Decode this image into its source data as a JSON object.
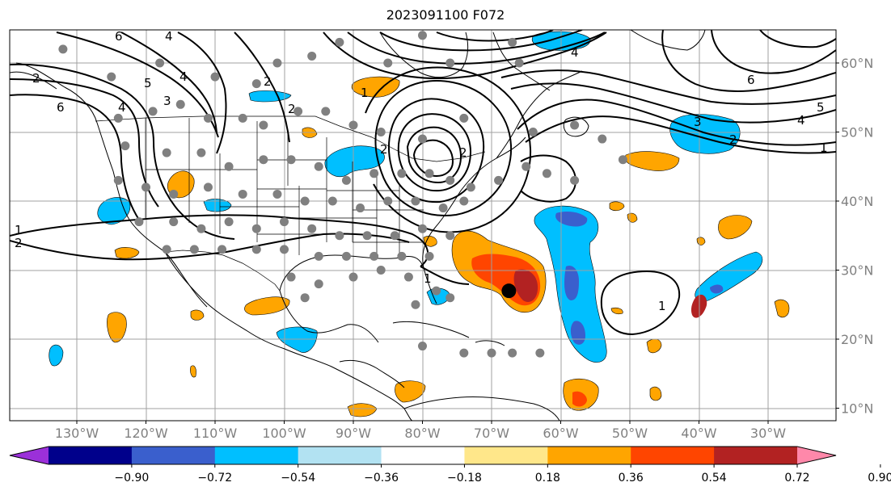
{
  "title": "2023091100 F072",
  "lon_labels": [
    {
      "label": "130°W",
      "lon": -130
    },
    {
      "label": "120°W",
      "lon": -120
    },
    {
      "label": "110°W",
      "lon": -110
    },
    {
      "label": "100°W",
      "lon": -100
    },
    {
      "label": "90°W",
      "lon": -90
    },
    {
      "label": "80°W",
      "lon": -80
    },
    {
      "label": "70°W",
      "lon": -70
    },
    {
      "label": "60°W",
      "lon": -60
    },
    {
      "label": "50°W",
      "lon": -50
    },
    {
      "label": "40°W",
      "lon": -40
    },
    {
      "label": "30°W",
      "lon": -30
    }
  ],
  "lat_labels": [
    {
      "label": "60°N",
      "lat": 60
    },
    {
      "label": "50°N",
      "lat": 50
    },
    {
      "label": "40°N",
      "lat": 40
    },
    {
      "label": "30°N",
      "lat": 30
    },
    {
      "label": "20°N",
      "lat": 20
    },
    {
      "label": "10°N",
      "lat": 10
    }
  ],
  "colorbar": {
    "colors": [
      "#9b30d9",
      "#00008b",
      "#3a5fcd",
      "#00bfff",
      "#b2e2f2",
      "#ffffff",
      "#ffe78a",
      "#ffa500",
      "#ff4500",
      "#b22222",
      "#ff88aa"
    ],
    "tick_labels": [
      "−0.90",
      "−0.72",
      "−0.54",
      "−0.36",
      "−0.18",
      "0.18",
      "0.36",
      "0.54",
      "0.72",
      "0.90"
    ]
  },
  "contour_labels": [
    "6",
    "4",
    "2",
    "6",
    "2",
    "4",
    "5",
    "4",
    "3",
    "1",
    "2",
    "2",
    "2",
    "4",
    "6",
    "5",
    "4",
    "3",
    "2",
    "1",
    "1",
    "1",
    "1",
    "2"
  ],
  "stations": [
    [
      -132,
      62
    ],
    [
      -125,
      58
    ],
    [
      -118,
      60
    ],
    [
      -110,
      58
    ],
    [
      -104,
      57
    ],
    [
      -101,
      60
    ],
    [
      -96,
      61
    ],
    [
      -92,
      63
    ],
    [
      -85,
      60
    ],
    [
      -80,
      64
    ],
    [
      -76,
      60
    ],
    [
      -67,
      63
    ],
    [
      -66,
      60
    ],
    [
      -124,
      52
    ],
    [
      -119,
      53
    ],
    [
      -115,
      54
    ],
    [
      -111,
      52
    ],
    [
      -106,
      52
    ],
    [
      -103,
      51
    ],
    [
      -98,
      53
    ],
    [
      -94,
      53
    ],
    [
      -90,
      51
    ],
    [
      -86,
      50
    ],
    [
      -80,
      49
    ],
    [
      -74,
      52
    ],
    [
      -64,
      50
    ],
    [
      -58,
      51
    ],
    [
      -54,
      49
    ],
    [
      -51,
      46
    ],
    [
      -123,
      48
    ],
    [
      -117,
      47
    ],
    [
      -112,
      47
    ],
    [
      -108,
      45
    ],
    [
      -103,
      46
    ],
    [
      -99,
      46
    ],
    [
      -95,
      45
    ],
    [
      -91,
      43
    ],
    [
      -87,
      44
    ],
    [
      -83,
      44
    ],
    [
      -79,
      44
    ],
    [
      -76,
      43
    ],
    [
      -73,
      42
    ],
    [
      -69,
      43
    ],
    [
      -65,
      45
    ],
    [
      -62,
      44
    ],
    [
      -58,
      43
    ],
    [
      -124,
      43
    ],
    [
      -120,
      42
    ],
    [
      -116,
      41
    ],
    [
      -111,
      42
    ],
    [
      -106,
      41
    ],
    [
      -101,
      41
    ],
    [
      -97,
      40
    ],
    [
      -93,
      40
    ],
    [
      -89,
      39
    ],
    [
      -85,
      40
    ],
    [
      -81,
      40
    ],
    [
      -77,
      39
    ],
    [
      -74,
      40
    ],
    [
      -121,
      37
    ],
    [
      -116,
      37
    ],
    [
      -112,
      36
    ],
    [
      -108,
      37
    ],
    [
      -104,
      36
    ],
    [
      -100,
      37
    ],
    [
      -96,
      36
    ],
    [
      -92,
      35
    ],
    [
      -88,
      35
    ],
    [
      -84,
      35
    ],
    [
      -80,
      36
    ],
    [
      -76,
      35
    ],
    [
      -117,
      33
    ],
    [
      -113,
      33
    ],
    [
      -109,
      33
    ],
    [
      -104,
      33
    ],
    [
      -100,
      33
    ],
    [
      -95,
      32
    ],
    [
      -91,
      32
    ],
    [
      -87,
      32
    ],
    [
      -83,
      32
    ],
    [
      -79,
      32
    ],
    [
      -99,
      29
    ],
    [
      -95,
      28
    ],
    [
      -90,
      29
    ],
    [
      -86,
      30
    ],
    [
      -82,
      29
    ],
    [
      -78,
      27
    ],
    [
      -97,
      26
    ],
    [
      -81,
      25
    ],
    [
      -76,
      26
    ],
    [
      -80,
      19
    ],
    [
      -74,
      18
    ],
    [
      -70,
      18
    ],
    [
      -67,
      18
    ],
    [
      -63,
      18
    ]
  ],
  "storm_center": {
    "lon": -67.5,
    "lat": 27
  }
}
